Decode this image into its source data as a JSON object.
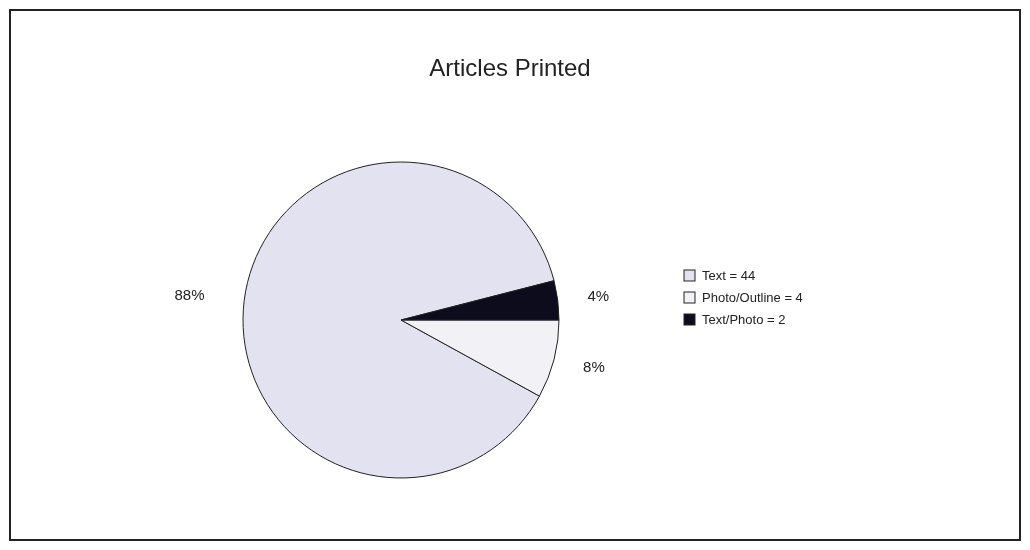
{
  "chart_data": {
    "type": "pie",
    "title": "Articles Printed",
    "categories": [
      "Text = 44",
      "Photo/Outline = 4",
      "Text/Photo = 2"
    ],
    "values": [
      88,
      8,
      4
    ],
    "colors": [
      "#e2e2f0",
      "#f2f2f6",
      "#0c0c1c"
    ],
    "value_labels": [
      "88%",
      "8%",
      "4%"
    ],
    "legend": "right"
  }
}
